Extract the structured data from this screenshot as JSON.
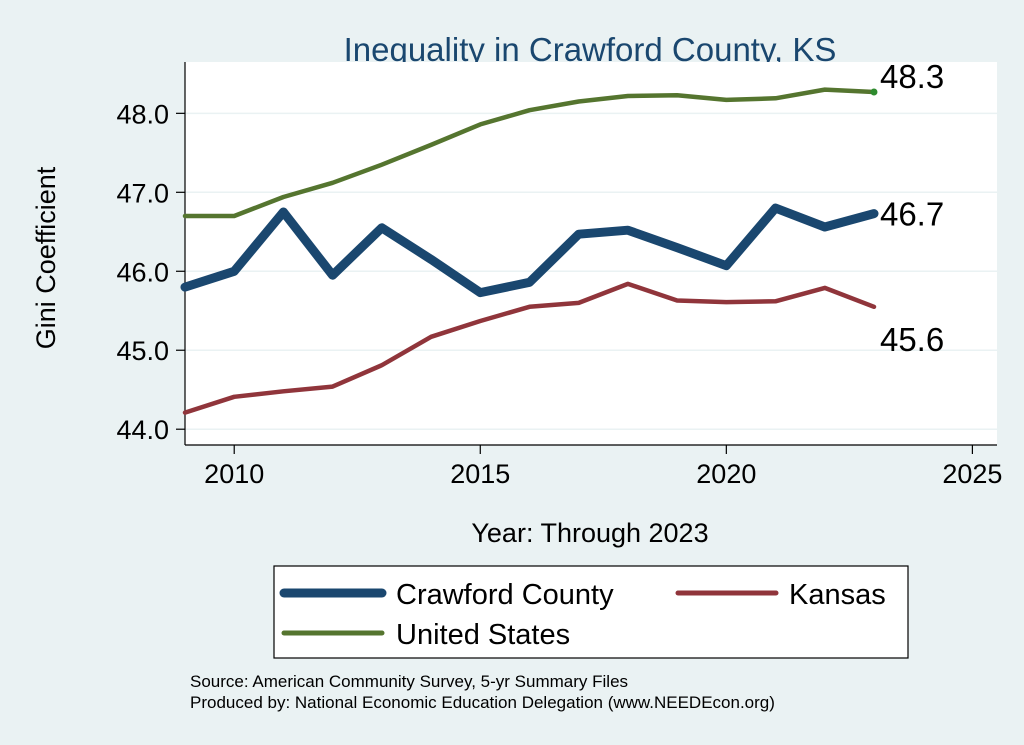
{
  "chart_data": {
    "type": "line",
    "title": "Inequality in Crawford County, KS",
    "xlabel": "Year: Through 2023",
    "ylabel": "Gini Coefficient",
    "xlim": [
      2009,
      2025.5
    ],
    "ylim": [
      43.8,
      48.65
    ],
    "x_ticks": [
      "2010",
      "2015",
      "2020",
      "2025"
    ],
    "y_ticks": [
      "44.0",
      "45.0",
      "46.0",
      "47.0",
      "48.0"
    ],
    "grid": true,
    "x": [
      2009,
      2010,
      2011,
      2012,
      2013,
      2014,
      2015,
      2016,
      2017,
      2018,
      2019,
      2020,
      2021,
      2022,
      2023
    ],
    "series": [
      {
        "name": "Crawford County",
        "color": "#1a476f",
        "values": [
          45.8,
          46.0,
          46.75,
          45.95,
          46.55,
          46.15,
          45.73,
          45.86,
          46.47,
          46.52,
          46.3,
          46.07,
          46.8,
          46.56,
          46.73
        ],
        "end_label": "46.7"
      },
      {
        "name": "Kansas",
        "color": "#90353b",
        "values": [
          44.21,
          44.41,
          44.48,
          44.54,
          44.81,
          45.17,
          45.37,
          45.55,
          45.6,
          45.84,
          45.63,
          45.61,
          45.62,
          45.79,
          45.55
        ],
        "end_label": "45.6"
      },
      {
        "name": "United States",
        "color": "#55752f",
        "values": [
          46.7,
          46.7,
          46.94,
          47.12,
          47.35,
          47.6,
          47.86,
          48.04,
          48.15,
          48.22,
          48.23,
          48.17,
          48.19,
          48.3,
          48.27
        ],
        "end_label": "48.3"
      }
    ],
    "legend": {
      "position": "bottom",
      "entries": [
        "Crawford County",
        "Kansas",
        "United States"
      ]
    }
  },
  "notes": {
    "source": "Source: American Community Survey, 5-yr Summary Files",
    "producer": "Produced by: National Economic Education Delegation (www.NEEDEcon.org)"
  },
  "colors": {
    "background": "#eaf2f3",
    "plot_background": "#ffffff",
    "grid": "#eaf2f3",
    "title": "#1a476f",
    "end_marker": "#2e8b2e"
  }
}
